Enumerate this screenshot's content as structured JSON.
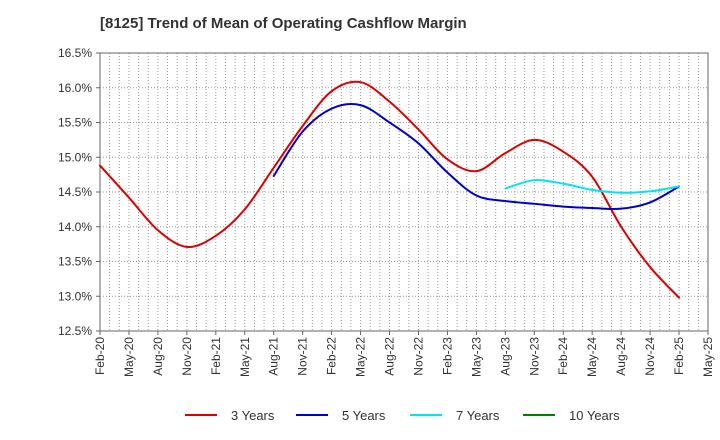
{
  "chart_data": {
    "type": "line",
    "title": "[8125]  Trend of Mean of Operating Cashflow Margin",
    "xlabel": "",
    "ylabel": "",
    "ylim": [
      12.5,
      16.5
    ],
    "yticks": [
      "16.5%",
      "16.0%",
      "15.5%",
      "15.0%",
      "14.5%",
      "14.0%",
      "13.5%",
      "13.0%",
      "12.5%"
    ],
    "ytick_values": [
      16.5,
      16.0,
      15.5,
      15.0,
      14.5,
      14.0,
      13.5,
      13.0,
      12.5
    ],
    "categories": [
      "Feb-20",
      "May-20",
      "Aug-20",
      "Nov-20",
      "Feb-21",
      "May-21",
      "Aug-21",
      "Nov-21",
      "Feb-22",
      "May-22",
      "Aug-22",
      "Nov-22",
      "Feb-23",
      "May-23",
      "Aug-23",
      "Nov-23",
      "Feb-24",
      "May-24",
      "Aug-24",
      "Nov-24",
      "Feb-25",
      "May-25"
    ],
    "grid": true,
    "legend_position": "bottom",
    "series": [
      {
        "name": "3 Years",
        "color": "#dd0000",
        "values": [
          14.88,
          14.42,
          13.95,
          13.71,
          13.87,
          14.25,
          14.85,
          15.45,
          15.95,
          16.08,
          15.8,
          15.4,
          14.97,
          14.8,
          15.06,
          15.25,
          15.08,
          14.72,
          14.0,
          13.42,
          12.98,
          null
        ]
      },
      {
        "name": "5 Years",
        "color": "#0000cc",
        "values": [
          null,
          null,
          null,
          null,
          null,
          null,
          14.73,
          15.37,
          15.7,
          15.75,
          15.5,
          15.2,
          14.78,
          14.45,
          14.37,
          14.33,
          14.29,
          14.27,
          14.26,
          14.35,
          14.58,
          null
        ]
      },
      {
        "name": "7 Years",
        "color": "#00e5ee",
        "values": [
          null,
          null,
          null,
          null,
          null,
          null,
          null,
          null,
          null,
          null,
          null,
          null,
          null,
          null,
          14.55,
          14.67,
          14.62,
          14.53,
          14.49,
          14.51,
          14.58,
          null
        ]
      },
      {
        "name": "10 Years",
        "color": "#008000",
        "values": [
          null,
          null,
          null,
          null,
          null,
          null,
          null,
          null,
          null,
          null,
          null,
          null,
          null,
          null,
          null,
          null,
          null,
          null,
          null,
          null,
          null,
          null
        ]
      }
    ]
  }
}
